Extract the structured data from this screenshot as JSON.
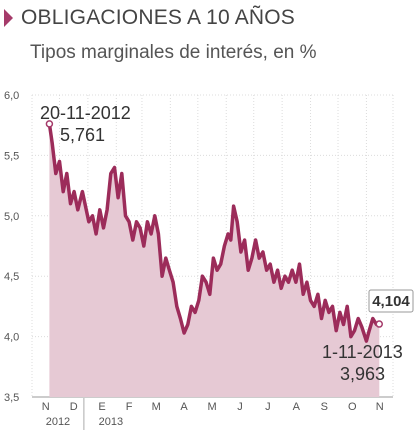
{
  "header": {
    "title": "OBLIGACIONES A 10 AÑOS",
    "subtitle": "Tipos marginales de interés, en %"
  },
  "chart_data": {
    "type": "area",
    "title": "OBLIGACIONES A 10 AÑOS",
    "subtitle": "Tipos marginales de interés, en %",
    "ylim": [
      3.5,
      6.0
    ],
    "yticks": [
      "6,0",
      "5,5",
      "5,0",
      "4,5",
      "4,0",
      "3,5"
    ],
    "ytick_values": [
      6.0,
      5.5,
      5.0,
      4.5,
      4.0,
      3.5
    ],
    "month_labels": [
      "N",
      "D",
      "E",
      "F",
      "M",
      "A",
      "M",
      "J",
      "J",
      "A",
      "S",
      "O",
      "N"
    ],
    "year_labels": [
      "2012",
      "2013"
    ],
    "grid": true,
    "colors": {
      "line": "#9c2c5a",
      "fill": "#e6c9d4",
      "marker": "#a53b6a"
    },
    "series": [
      {
        "x": [
          "2012-11-20",
          "2012-11-23",
          "2012-11-27",
          "2012-12-01",
          "2012-12-05",
          "2012-12-09",
          "2012-12-13",
          "2012-12-17",
          "2012-12-21",
          "2012-12-26",
          "2013-01-02",
          "2013-01-06",
          "2013-01-10",
          "2013-01-14",
          "2013-01-18",
          "2013-01-22",
          "2013-01-26",
          "2013-01-30",
          "2013-02-03",
          "2013-02-07",
          "2013-02-11",
          "2013-02-15",
          "2013-02-19",
          "2013-02-23",
          "2013-02-27",
          "2013-03-03",
          "2013-03-07",
          "2013-03-11",
          "2013-03-15",
          "2013-03-19",
          "2013-03-23",
          "2013-03-27",
          "2013-03-31",
          "2013-04-04",
          "2013-04-08",
          "2013-04-12",
          "2013-04-16",
          "2013-04-20",
          "2013-04-24",
          "2013-04-28",
          "2013-05-02",
          "2013-05-06",
          "2013-05-10",
          "2013-05-14",
          "2013-05-18",
          "2013-05-22",
          "2013-05-26",
          "2013-05-30",
          "2013-06-03",
          "2013-06-06",
          "2013-06-09",
          "2013-06-13",
          "2013-06-17",
          "2013-06-21",
          "2013-06-25",
          "2013-06-29",
          "2013-07-03",
          "2013-07-07",
          "2013-07-11",
          "2013-07-15",
          "2013-07-19",
          "2013-07-23",
          "2013-07-27",
          "2013-07-31",
          "2013-08-04",
          "2013-08-08",
          "2013-08-12",
          "2013-08-16",
          "2013-08-20",
          "2013-08-24",
          "2013-08-28",
          "2013-09-01",
          "2013-09-05",
          "2013-09-09",
          "2013-09-13",
          "2013-09-17",
          "2013-09-21",
          "2013-09-25",
          "2013-09-29",
          "2013-10-03",
          "2013-10-07",
          "2013-10-11",
          "2013-10-15",
          "2013-10-19",
          "2013-10-23",
          "2013-10-27",
          "2013-11-01",
          "2013-11-04",
          "2013-11-08",
          "2013-11-12",
          "2013-11-15"
        ],
        "values": [
          5.761,
          5.6,
          5.35,
          5.45,
          5.2,
          5.35,
          5.1,
          5.2,
          5.05,
          5.2,
          4.95,
          5.0,
          4.85,
          5.05,
          4.9,
          5.05,
          5.35,
          5.4,
          5.15,
          5.35,
          5.0,
          4.95,
          4.8,
          4.95,
          4.9,
          4.75,
          4.95,
          4.85,
          5.0,
          4.85,
          4.5,
          4.65,
          4.55,
          4.45,
          4.25,
          4.15,
          4.03,
          4.1,
          4.25,
          4.2,
          4.3,
          4.5,
          4.45,
          4.35,
          4.65,
          4.55,
          4.6,
          4.75,
          4.85,
          4.8,
          5.08,
          4.95,
          4.7,
          4.8,
          4.55,
          4.65,
          4.8,
          4.65,
          4.7,
          4.55,
          4.6,
          4.45,
          4.55,
          4.4,
          4.5,
          4.45,
          4.55,
          4.45,
          4.6,
          4.35,
          4.45,
          4.3,
          4.25,
          4.35,
          4.15,
          4.3,
          4.2,
          4.25,
          4.05,
          4.2,
          4.1,
          4.25,
          4.0,
          4.05,
          4.15,
          4.08,
          3.963,
          4.05,
          4.15,
          4.1,
          4.104
        ]
      }
    ],
    "annotations": [
      {
        "date": "20-11-2012",
        "value": "5,761"
      },
      {
        "date": "1-11-2013",
        "value": "3,963"
      },
      {
        "value": "4,104"
      }
    ]
  }
}
